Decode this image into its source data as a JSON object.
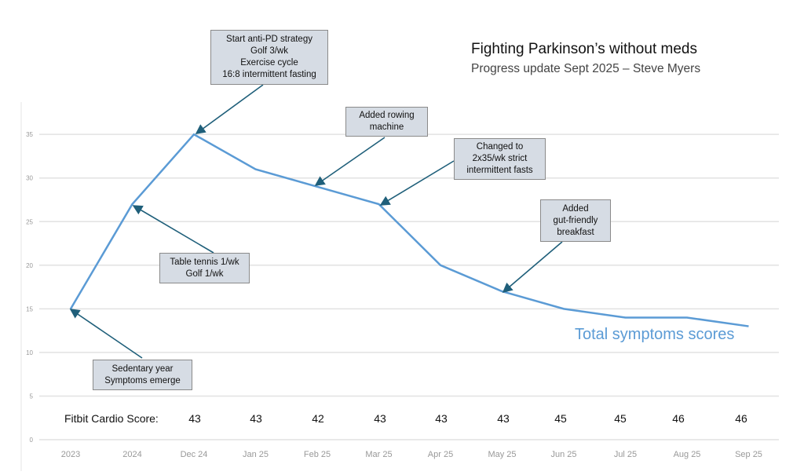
{
  "chart_data": {
    "type": "line",
    "title": "Fighting Parkinson’s without meds",
    "subtitle": "Progress update Sept 2025 – Steve Myers",
    "categories": [
      "2023",
      "2024",
      "Dec 24",
      "Jan 25",
      "Feb 25",
      "Mar 25",
      "Apr 25",
      "May 25",
      "Jun 25",
      "Jul 25",
      "Aug 25",
      "Sep 25"
    ],
    "series": [
      {
        "name": "Total symptoms scores",
        "values": [
          15,
          27,
          35,
          31,
          29,
          27,
          20,
          17,
          15,
          14,
          14,
          13
        ],
        "color": "#5b9bd5"
      }
    ],
    "ylim": [
      0,
      35
    ],
    "yticks": [
      "0",
      "5",
      "10",
      "15",
      "20",
      "25",
      "30",
      "35"
    ],
    "grid": true,
    "legend_position": "bottom-right",
    "fitbit": {
      "label": "Fitbit Cardio Score:",
      "values": [
        "43",
        "43",
        "42",
        "43",
        "43",
        "43",
        "45",
        "45",
        "46",
        "46"
      ]
    },
    "annotations": [
      {
        "lines": [
          "Start anti-PD strategy",
          "Golf 3/wk",
          "Exercise cycle",
          "16:8 intermittent fasting"
        ],
        "points_to": "Dec 24"
      },
      {
        "lines": [
          "Added rowing",
          "machine"
        ],
        "points_to": "Feb 25"
      },
      {
        "lines": [
          "Changed to",
          "2x35/wk strict",
          "intermittent fasts"
        ],
        "points_to": "Mar 25"
      },
      {
        "lines": [
          "Added",
          "gut-friendly",
          "breakfast"
        ],
        "points_to": "May 25"
      },
      {
        "lines": [
          "Table tennis 1/wk",
          "Golf 1/wk"
        ],
        "points_to": "2024"
      },
      {
        "lines": [
          "Sedentary year",
          "Symptoms emerge"
        ],
        "points_to": "2023"
      }
    ]
  }
}
